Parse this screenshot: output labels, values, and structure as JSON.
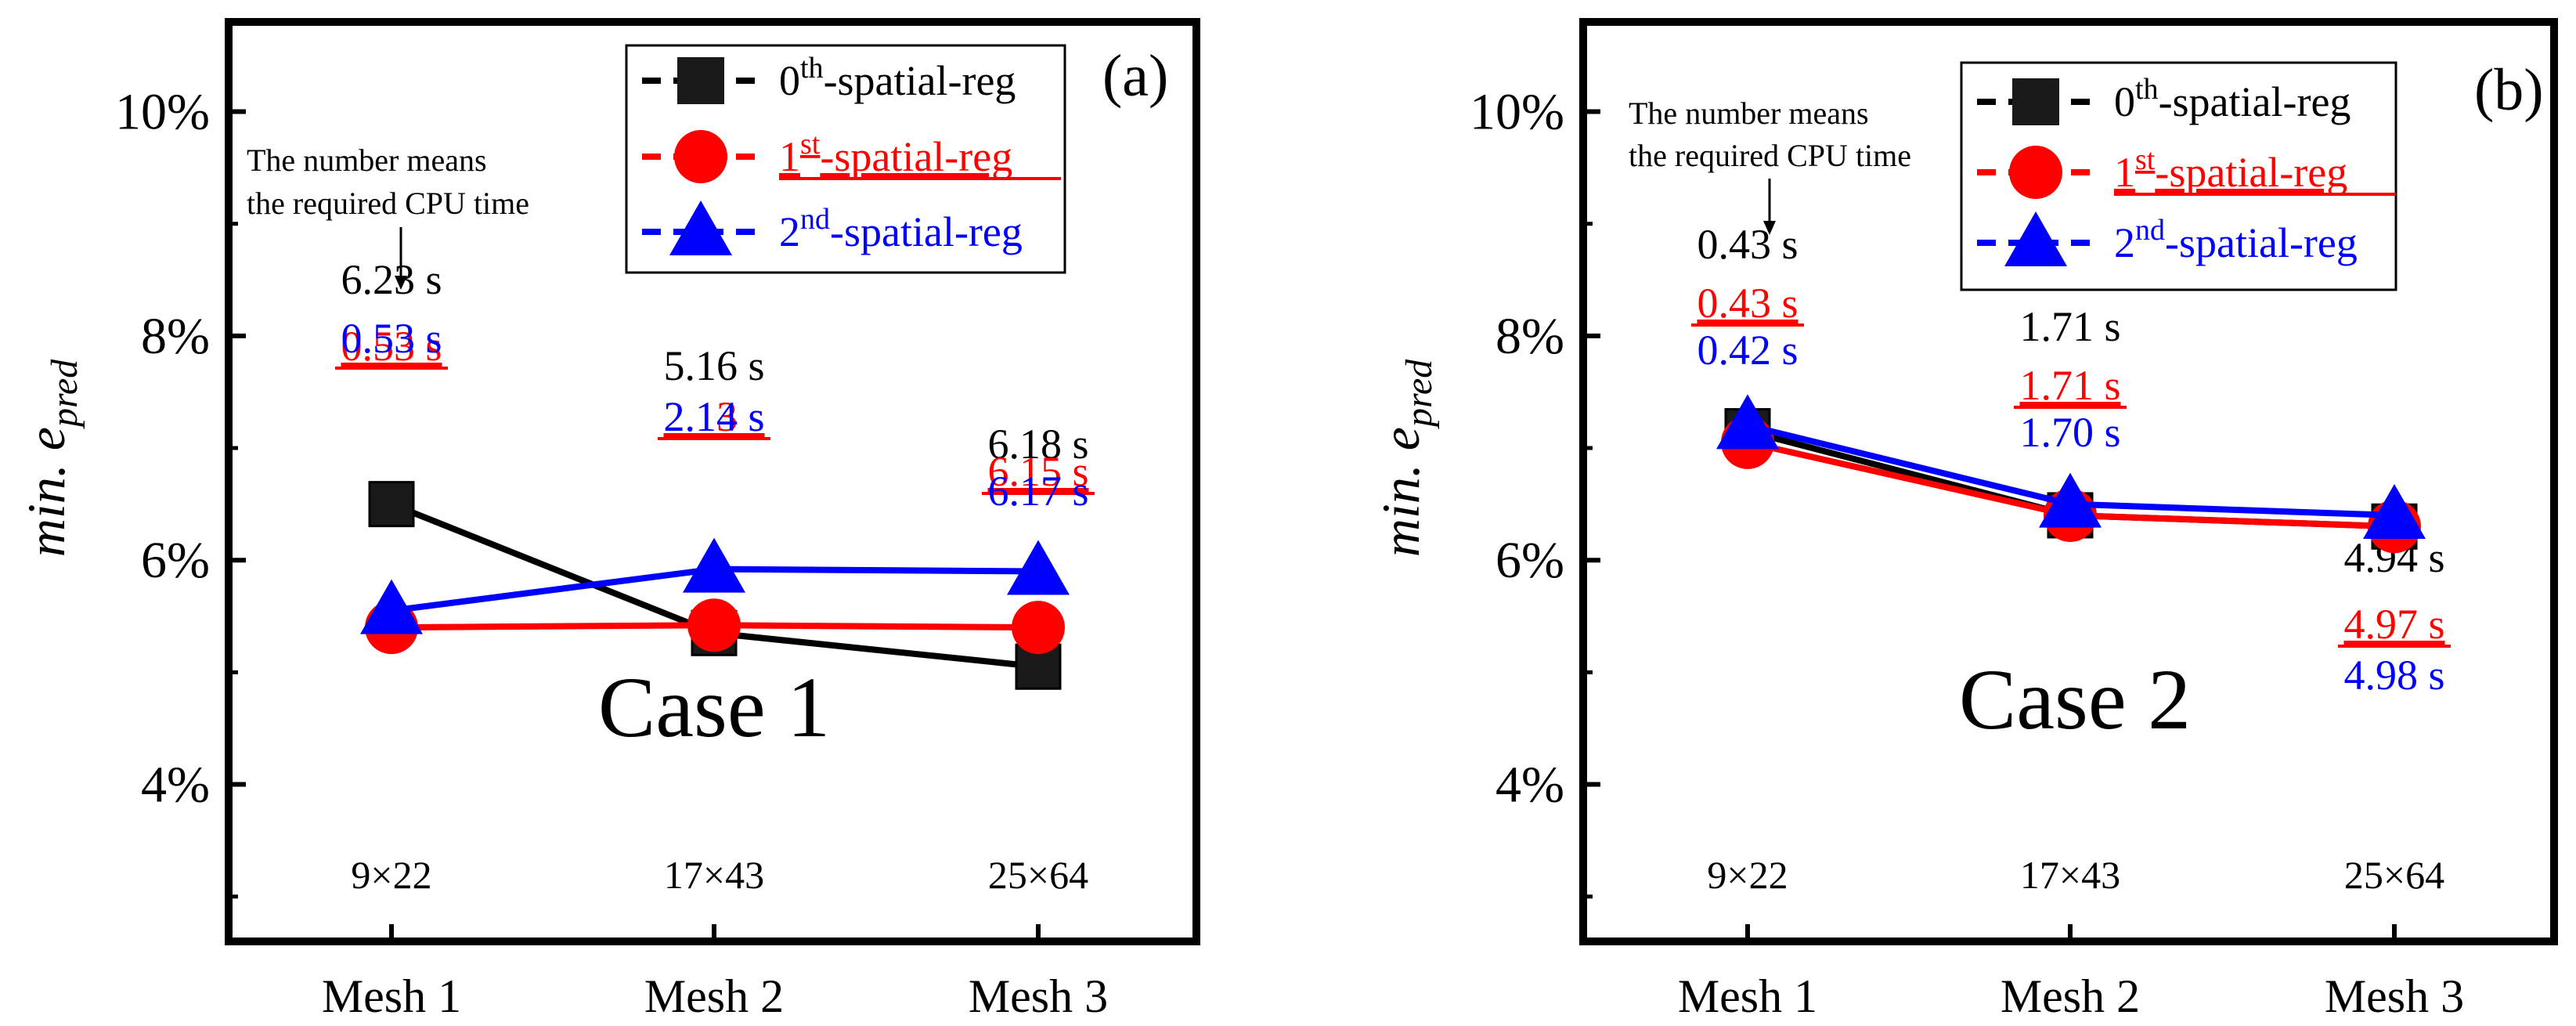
{
  "chart_data": [
    {
      "type": "line",
      "panel_label": "(a)",
      "case_label": "Case 1",
      "ylabel_main": "min. e",
      "ylabel_sub": "pred",
      "categories": [
        "Mesh 1",
        "Mesh 2",
        "Mesh 3"
      ],
      "mesh_sizes": [
        "9×22",
        "17×43",
        "25×64"
      ],
      "ylim": [
        2.6,
        10.8
      ],
      "yticks": [
        4,
        6,
        8,
        10
      ],
      "ytick_labels": [
        "4%",
        "6%",
        "8%",
        "10%"
      ],
      "annotation": [
        "The number means",
        "the required CPU time"
      ],
      "legend_position": "top-right",
      "series": [
        {
          "name_base": "0",
          "name_sup": "th",
          "name_rest": "-spatial-reg",
          "color": "#000000",
          "marker": "square",
          "underline": false,
          "values": [
            6.5,
            5.35,
            5.05
          ],
          "cpu_times": [
            "6.23 s",
            "5.16 s",
            "6.18 s"
          ]
        },
        {
          "name_base": "1",
          "name_sup": "st",
          "name_rest": "-spatial-reg",
          "color": "#ff0000",
          "marker": "circle",
          "underline": true,
          "values": [
            5.4,
            5.42,
            5.4
          ],
          "cpu_times": [
            "0.53 s",
            "2.13 s",
            "6.15 s"
          ]
        },
        {
          "name_base": "2",
          "name_sup": "nd",
          "name_rest": "-spatial-reg",
          "color": "#0000ff",
          "marker": "triangle",
          "underline": false,
          "values": [
            5.55,
            5.92,
            5.9
          ],
          "cpu_times": [
            "0.53 s",
            "2.14 s",
            "6.17 s"
          ]
        }
      ]
    },
    {
      "type": "line",
      "panel_label": "(b)",
      "case_label": "Case 2",
      "ylabel_main": "min. e",
      "ylabel_sub": "pred",
      "categories": [
        "Mesh 1",
        "Mesh 2",
        "Mesh 3"
      ],
      "mesh_sizes": [
        "9×22",
        "17×43",
        "25×64"
      ],
      "ylim": [
        2.6,
        10.8
      ],
      "yticks": [
        4,
        6,
        8,
        10
      ],
      "ytick_labels": [
        "4%",
        "6%",
        "8%",
        "10%"
      ],
      "annotation": [
        "The number means",
        "the required CPU time"
      ],
      "legend_position": "top-right",
      "series": [
        {
          "name_base": "0",
          "name_sup": "th",
          "name_rest": "-spatial-reg",
          "color": "#000000",
          "marker": "square",
          "underline": false,
          "values": [
            7.15,
            6.4,
            6.3
          ],
          "cpu_times": [
            "0.43 s",
            "1.71 s",
            "4.94 s"
          ]
        },
        {
          "name_base": "1",
          "name_sup": "st",
          "name_rest": "-spatial-reg",
          "color": "#ff0000",
          "marker": "circle",
          "underline": true,
          "values": [
            7.05,
            6.4,
            6.3
          ],
          "cpu_times": [
            "0.43 s",
            "1.71 s",
            "4.97 s"
          ]
        },
        {
          "name_base": "2",
          "name_sup": "nd",
          "name_rest": "-spatial-reg",
          "color": "#0000ff",
          "marker": "triangle",
          "underline": false,
          "values": [
            7.2,
            6.5,
            6.4
          ],
          "cpu_times": [
            "0.42 s",
            "1.70 s",
            "4.98 s"
          ]
        }
      ]
    }
  ]
}
